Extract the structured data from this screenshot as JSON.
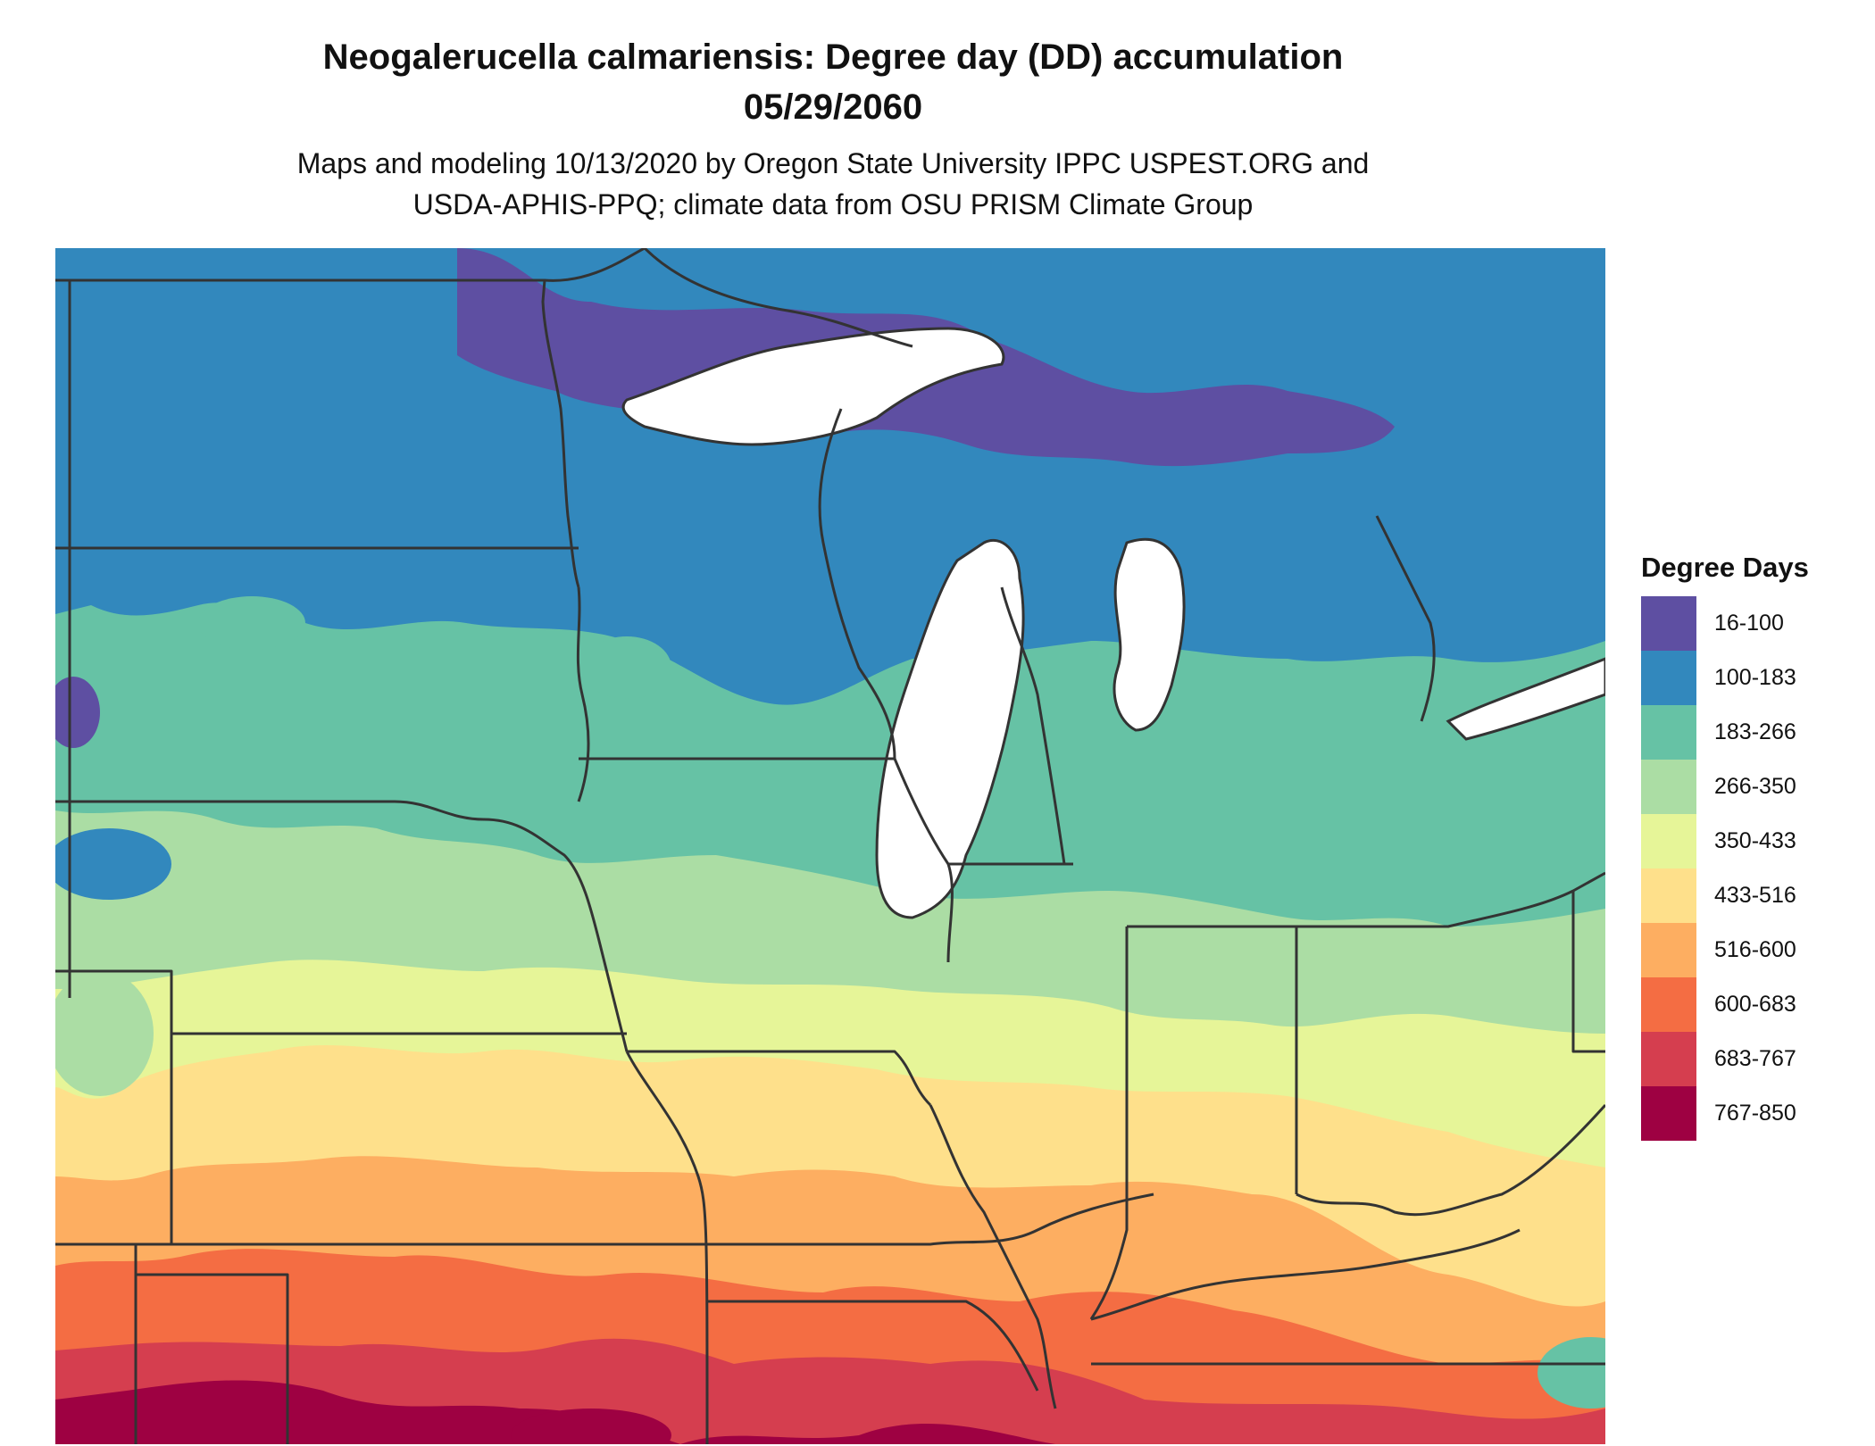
{
  "map": {
    "title_line1": "Neogalerucella calmariensis: Degree day (DD) accumulation",
    "title_line2": "05/29/2060",
    "subtitle_line1": "Maps and modeling 10/13/2020 by Oregon State University IPPC USPEST.ORG and",
    "subtitle_line2": "USDA-APHIS-PPQ; climate data from OSU PRISM Climate Group",
    "water_color": "#ffffff",
    "border_color": "#333333"
  },
  "legend": {
    "title": "Degree Days",
    "items": [
      {
        "label": "16-100",
        "color": "#5e4fa2"
      },
      {
        "label": "100-183",
        "color": "#3288bd"
      },
      {
        "label": "183-266",
        "color": "#66c2a5"
      },
      {
        "label": "266-350",
        "color": "#abdda4"
      },
      {
        "label": "350-433",
        "color": "#e6f598"
      },
      {
        "label": "433-516",
        "color": "#fee08b"
      },
      {
        "label": "516-600",
        "color": "#fdae61"
      },
      {
        "label": "600-683",
        "color": "#f46d43"
      },
      {
        "label": "683-767",
        "color": "#d53e4f"
      },
      {
        "label": "767-850",
        "color": "#9e0142"
      }
    ]
  }
}
